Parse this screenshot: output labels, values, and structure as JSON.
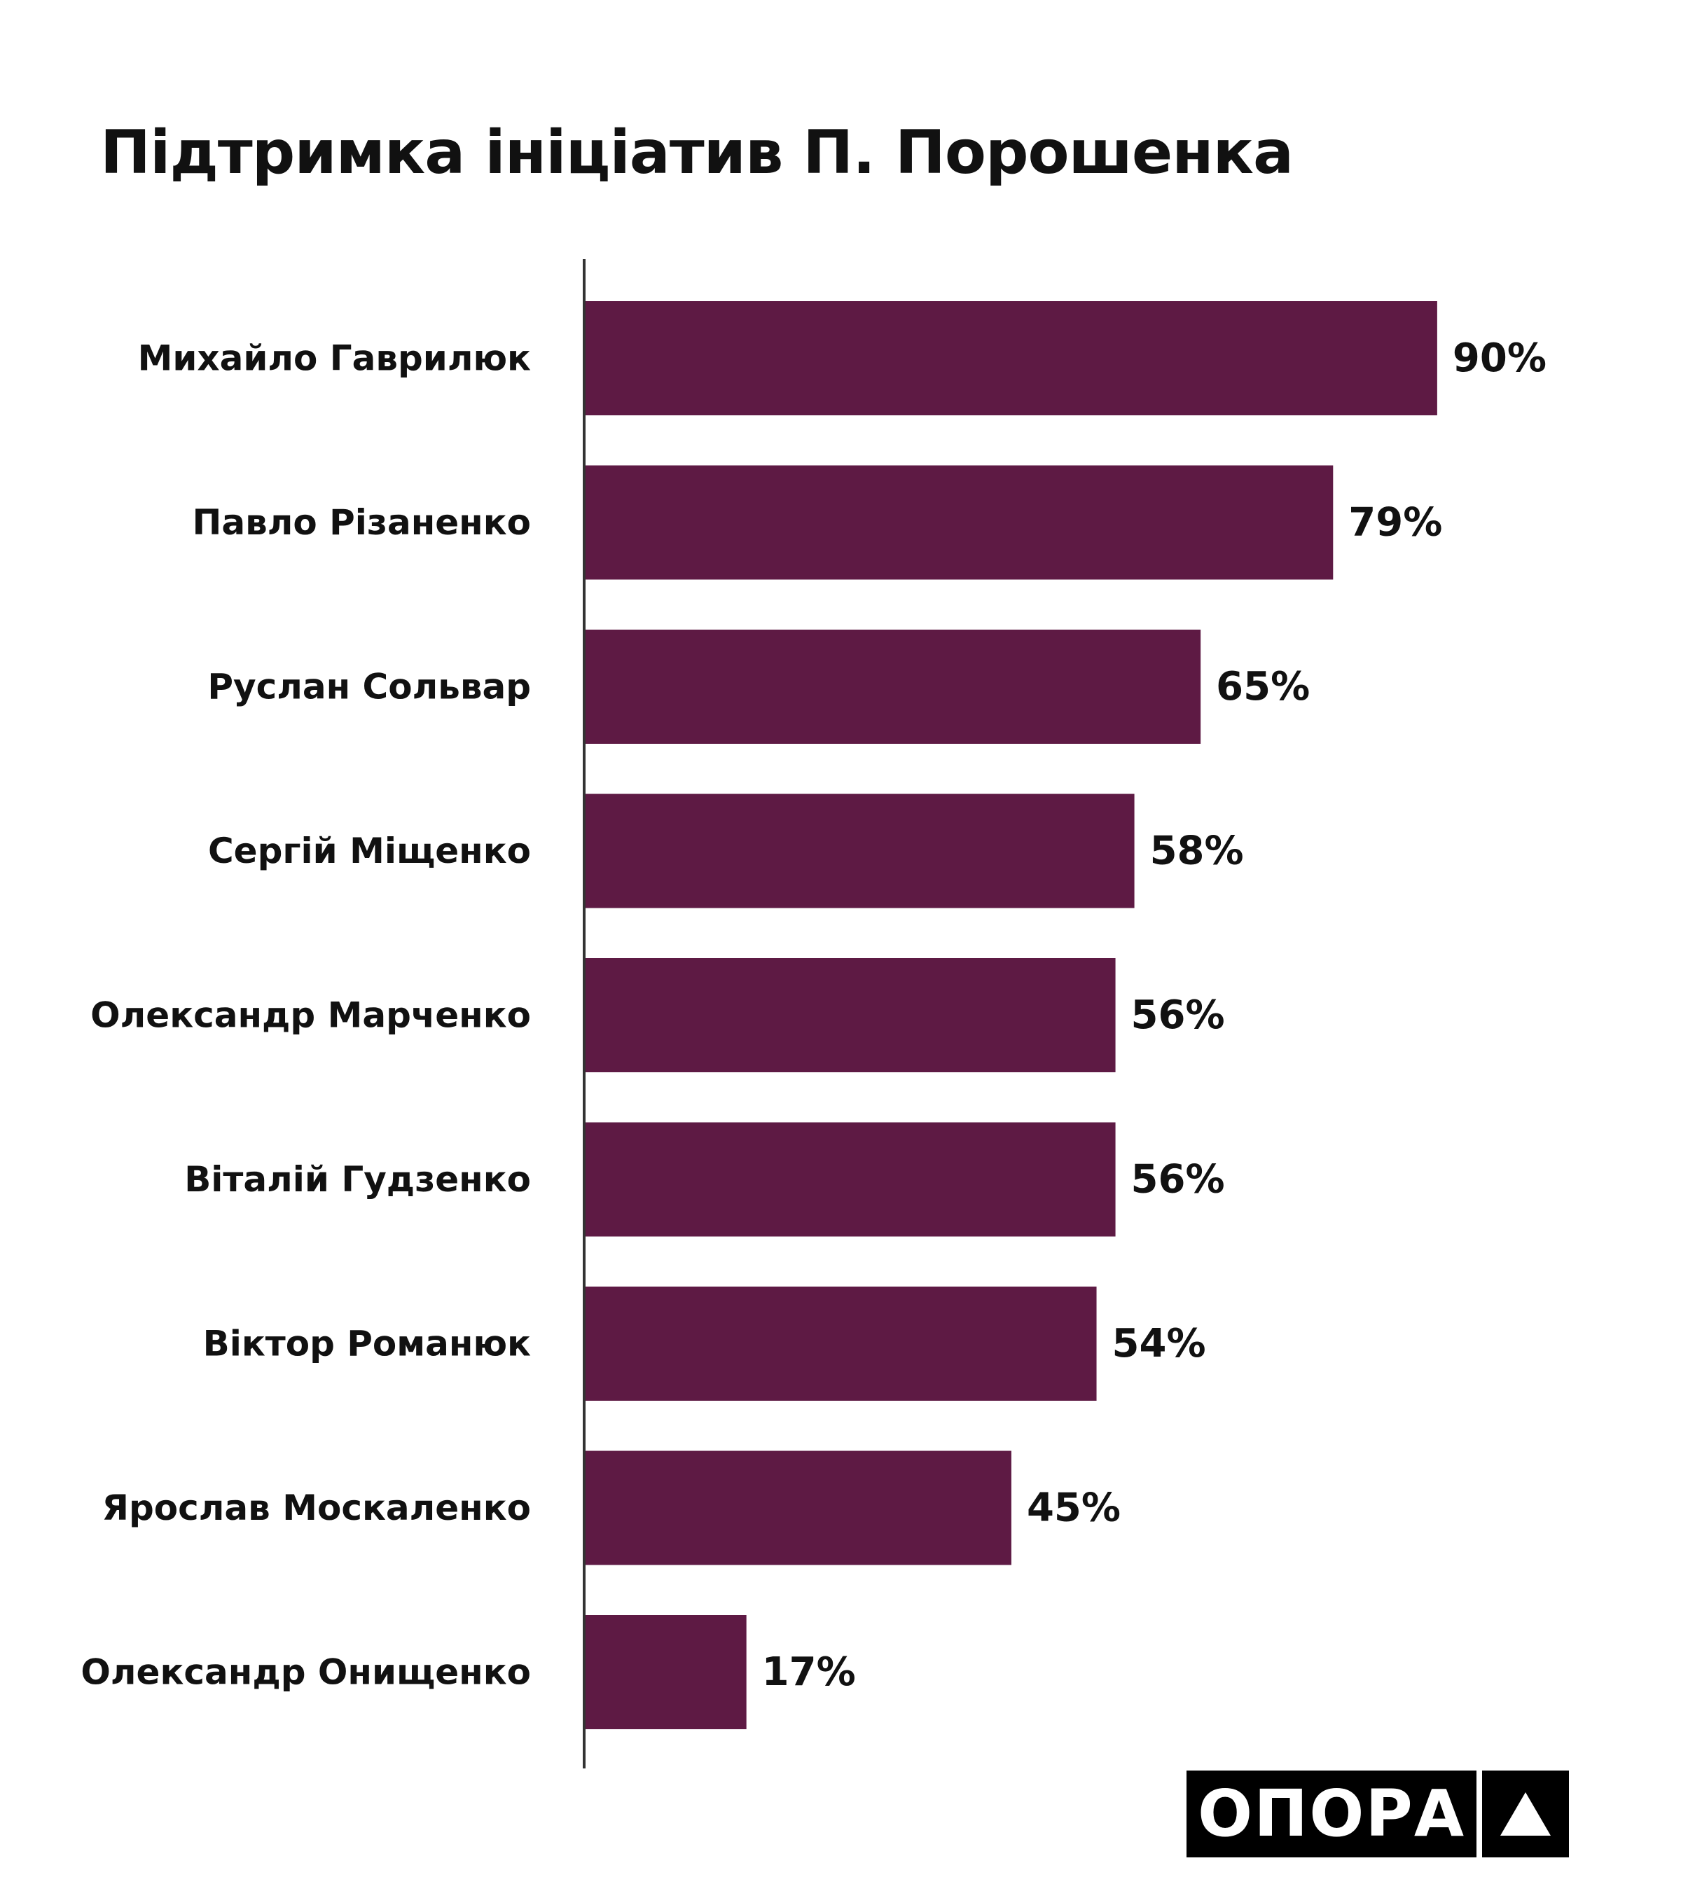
{
  "title": "Підтримка ініціатив П. Порошенка",
  "colors": {
    "bar": "#5e1a44",
    "axis": "#333333",
    "text": "#111111"
  },
  "logo": {
    "text": "ОПОРА",
    "icon": "triangle-icon"
  },
  "chart_data": {
    "type": "bar",
    "orientation": "horizontal",
    "title": "Підтримка ініціатив П. Порошенка",
    "categories": [
      "Михайло Гаврилюк",
      "Павло Різаненко",
      "Руслан Сольвар",
      "Сергій Міщенко",
      "Олександр Марченко",
      "Віталій Гудзенко",
      "Віктор Романюк",
      "Ярослав Москаленко",
      "Олександр Онищенко"
    ],
    "values": [
      90,
      79,
      65,
      58,
      56,
      56,
      54,
      45,
      17
    ],
    "value_labels": [
      "90%",
      "79%",
      "65%",
      "58%",
      "56%",
      "56%",
      "54%",
      "45%",
      "17%"
    ],
    "unit": "%",
    "xlim": [
      0,
      100
    ],
    "grid": false,
    "legend": "none"
  }
}
